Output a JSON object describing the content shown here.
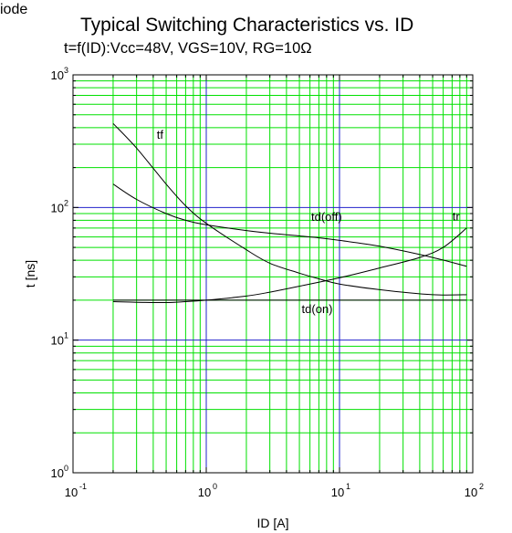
{
  "header": {
    "corner_fragment": "iode",
    "title": "Typical Switching Characteristics vs. ID",
    "subtitle": "t=f(ID):Vcc=48V, VGS=10V, RG=10Ω"
  },
  "chart_data": {
    "type": "line",
    "title": "Typical Switching Characteristics vs. ID",
    "subtitle": "t=f(ID):Vcc=48V, VGS=10V, RG=10Ω",
    "xlabel": "ID [A]",
    "ylabel": "t [ns]",
    "x_scale": "log",
    "y_scale": "log",
    "xlim": [
      0.1,
      100
    ],
    "ylim": [
      1,
      1000
    ],
    "x_ticks": [
      {
        "base": "10",
        "exp": "-1",
        "value": 0.1
      },
      {
        "base": "10",
        "exp": "0",
        "value": 1
      },
      {
        "base": "10",
        "exp": "1",
        "value": 10
      },
      {
        "base": "10",
        "exp": "2",
        "value": 100
      }
    ],
    "y_ticks": [
      {
        "base": "10",
        "exp": "0",
        "value": 1
      },
      {
        "base": "10",
        "exp": "1",
        "value": 10
      },
      {
        "base": "10",
        "exp": "2",
        "value": 100
      },
      {
        "base": "10",
        "exp": "3",
        "value": 1000
      }
    ],
    "grid": true,
    "colors": {
      "major_grid": "#2222cc",
      "minor_grid": "#00e000",
      "curve": "#000000"
    },
    "series": [
      {
        "name": "tf",
        "label_at": [
          0.45,
          330
        ],
        "points": [
          [
            0.2,
            430
          ],
          [
            0.3,
            280
          ],
          [
            0.5,
            150
          ],
          [
            0.7,
            103
          ],
          [
            1,
            76
          ],
          [
            2,
            48
          ],
          [
            3,
            38
          ],
          [
            5,
            32
          ],
          [
            7,
            29
          ],
          [
            10,
            26.5
          ],
          [
            20,
            24
          ],
          [
            50,
            22
          ],
          [
            90,
            22
          ]
        ]
      },
      {
        "name": "td(off)",
        "label_at": [
          8,
          79
        ],
        "points": [
          [
            0.2,
            150
          ],
          [
            0.3,
            115
          ],
          [
            0.5,
            90
          ],
          [
            0.7,
            80
          ],
          [
            1,
            74
          ],
          [
            2,
            67
          ],
          [
            3,
            64
          ],
          [
            5,
            61
          ],
          [
            7,
            59
          ],
          [
            10,
            56.5
          ],
          [
            20,
            51
          ],
          [
            50,
            42
          ],
          [
            90,
            36
          ]
        ]
      },
      {
        "name": "tr",
        "label_at": [
          75,
          80
        ],
        "points": [
          [
            0.2,
            19.5
          ],
          [
            0.3,
            19.3
          ],
          [
            0.5,
            19.2
          ],
          [
            0.7,
            19.5
          ],
          [
            1,
            20
          ],
          [
            2,
            21.5
          ],
          [
            3,
            23
          ],
          [
            5,
            25.5
          ],
          [
            10,
            29.5
          ],
          [
            20,
            35
          ],
          [
            40,
            42
          ],
          [
            60,
            50
          ],
          [
            90,
            70
          ]
        ]
      },
      {
        "name": "td(on)",
        "label_at": [
          6.8,
          16
        ],
        "points": [
          [
            0.2,
            20
          ],
          [
            1,
            20
          ],
          [
            10,
            20
          ],
          [
            90,
            20
          ]
        ]
      }
    ]
  }
}
